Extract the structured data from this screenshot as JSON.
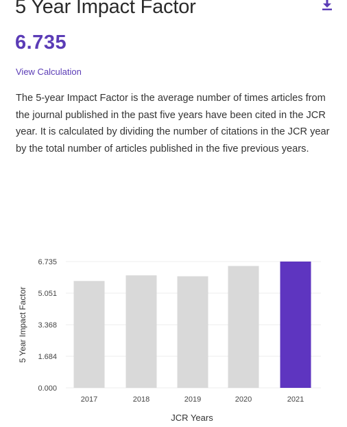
{
  "header": {
    "title": "5 Year Impact Factor",
    "download_icon": "download-icon"
  },
  "metric": {
    "value": "6.735",
    "view_calculation_label": "View Calculation"
  },
  "description": "The 5-year Impact Factor is the average number of times articles from the journal published in the past five years have been cited in the JCR year. It is calculated by dividing the number of citations in the JCR year by the total number of articles published in the five previous years.",
  "colors": {
    "accent": "#5b3cb6",
    "bar_default": "#d9d9d9",
    "bar_highlight": "#5e35c0"
  },
  "chart_data": {
    "type": "bar",
    "categories": [
      "2017",
      "2018",
      "2019",
      "2020",
      "2021"
    ],
    "values": [
      5.7,
      6.0,
      5.95,
      6.5,
      6.735
    ],
    "highlight_index": 4,
    "ylim": [
      0,
      6.735
    ],
    "yticks": [
      "0.000",
      "1.684",
      "3.368",
      "5.051",
      "6.735"
    ],
    "xlabel": "JCR Years",
    "ylabel": "5 Year Impact Factor",
    "grid": true
  }
}
